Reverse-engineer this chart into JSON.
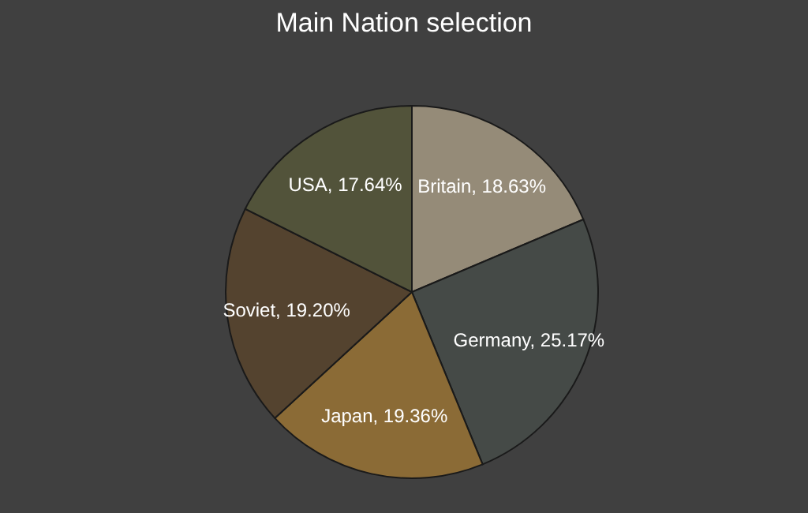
{
  "chart_data": {
    "type": "pie",
    "title": "Main Nation selection",
    "categories": [
      "Britain",
      "Germany",
      "Japan",
      "Soviet",
      "USA"
    ],
    "values": [
      18.63,
      25.17,
      19.36,
      19.2,
      17.64
    ],
    "colors": [
      "#958b78",
      "#454a47",
      "#8b6b36",
      "#54432f",
      "#52533a"
    ],
    "value_labels": [
      "18.63%",
      "25.17%",
      "19.36%",
      "19.20%",
      "17.64%"
    ]
  }
}
